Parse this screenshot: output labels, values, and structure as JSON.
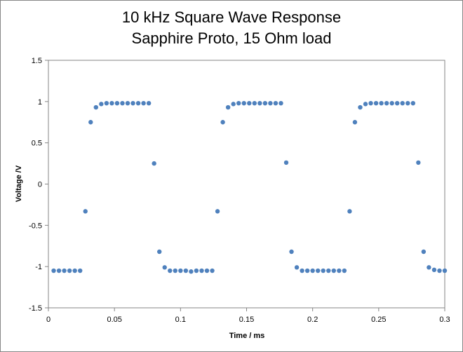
{
  "chart_data": {
    "type": "scatter",
    "title": [
      "10 kHz Square Wave Response",
      "Sapphire Proto, 15 Ohm load"
    ],
    "xlabel": "Time / ms",
    "ylabel": "Voltage /V",
    "xlim": [
      0,
      0.3
    ],
    "ylim": [
      -1.5,
      1.5
    ],
    "x_ticks": [
      "0",
      "0.05",
      "0.1",
      "0.15",
      "0.2",
      "0.25",
      "0.3"
    ],
    "y_ticks": [
      "1.5",
      "1",
      "0.5",
      "0",
      "-0.5",
      "-1",
      "-1.5"
    ],
    "gridlines": "none",
    "legend": "none",
    "marker_color": "#4F81BD",
    "series": [
      {
        "points": [
          [
            0.004,
            -1.05
          ],
          [
            0.008,
            -1.05
          ],
          [
            0.012,
            -1.05
          ],
          [
            0.016,
            -1.05
          ],
          [
            0.02,
            -1.05
          ],
          [
            0.024,
            -1.05
          ],
          [
            0.028,
            -0.33
          ],
          [
            0.032,
            0.75
          ],
          [
            0.036,
            0.93
          ],
          [
            0.04,
            0.97
          ],
          [
            0.044,
            0.98
          ],
          [
            0.048,
            0.98
          ],
          [
            0.052,
            0.98
          ],
          [
            0.056,
            0.98
          ],
          [
            0.06,
            0.98
          ],
          [
            0.064,
            0.98
          ],
          [
            0.068,
            0.98
          ],
          [
            0.072,
            0.98
          ],
          [
            0.076,
            0.98
          ],
          [
            0.08,
            0.25
          ],
          [
            0.084,
            -0.82
          ],
          [
            0.088,
            -1.01
          ],
          [
            0.092,
            -1.05
          ],
          [
            0.096,
            -1.05
          ],
          [
            0.1,
            -1.05
          ],
          [
            0.104,
            -1.05
          ],
          [
            0.108,
            -1.06
          ],
          [
            0.112,
            -1.05
          ],
          [
            0.116,
            -1.05
          ],
          [
            0.12,
            -1.05
          ],
          [
            0.124,
            -1.05
          ],
          [
            0.128,
            -0.33
          ],
          [
            0.132,
            0.75
          ],
          [
            0.136,
            0.93
          ],
          [
            0.14,
            0.97
          ],
          [
            0.144,
            0.98
          ],
          [
            0.148,
            0.98
          ],
          [
            0.152,
            0.98
          ],
          [
            0.156,
            0.98
          ],
          [
            0.16,
            0.98
          ],
          [
            0.164,
            0.98
          ],
          [
            0.168,
            0.98
          ],
          [
            0.172,
            0.98
          ],
          [
            0.176,
            0.98
          ],
          [
            0.18,
            0.26
          ],
          [
            0.184,
            -0.82
          ],
          [
            0.188,
            -1.01
          ],
          [
            0.192,
            -1.05
          ],
          [
            0.196,
            -1.05
          ],
          [
            0.2,
            -1.05
          ],
          [
            0.204,
            -1.05
          ],
          [
            0.208,
            -1.05
          ],
          [
            0.212,
            -1.05
          ],
          [
            0.216,
            -1.05
          ],
          [
            0.22,
            -1.05
          ],
          [
            0.224,
            -1.05
          ],
          [
            0.228,
            -0.33
          ],
          [
            0.232,
            0.75
          ],
          [
            0.236,
            0.93
          ],
          [
            0.24,
            0.97
          ],
          [
            0.244,
            0.98
          ],
          [
            0.248,
            0.98
          ],
          [
            0.252,
            0.98
          ],
          [
            0.256,
            0.98
          ],
          [
            0.26,
            0.98
          ],
          [
            0.264,
            0.98
          ],
          [
            0.268,
            0.98
          ],
          [
            0.272,
            0.98
          ],
          [
            0.276,
            0.98
          ],
          [
            0.28,
            0.26
          ],
          [
            0.284,
            -0.82
          ],
          [
            0.288,
            -1.01
          ],
          [
            0.292,
            -1.04
          ],
          [
            0.296,
            -1.05
          ],
          [
            0.3,
            -1.05
          ]
        ]
      }
    ]
  }
}
